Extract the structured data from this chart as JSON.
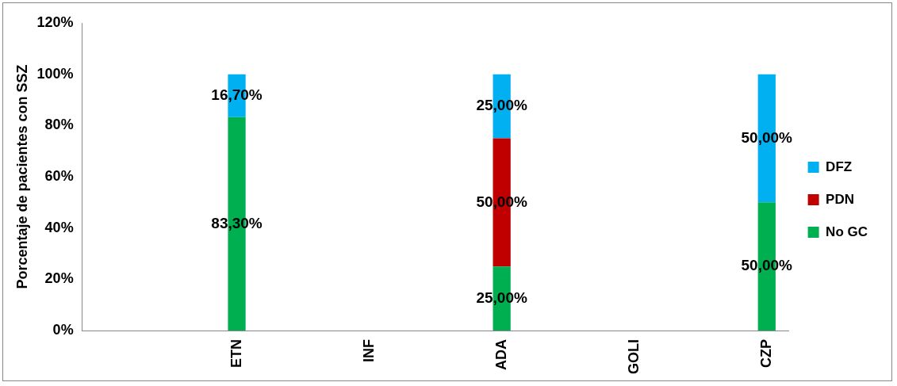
{
  "chart_data": {
    "type": "bar",
    "stacked": true,
    "ylabel": "Porcentaje de pacientes con SSZ",
    "categories": [
      null,
      null,
      null,
      "ETN",
      null,
      null,
      "INF",
      null,
      null,
      "ADA",
      null,
      null,
      "GOLI",
      null,
      null,
      "CZP"
    ],
    "series": [
      {
        "name": "No GC",
        "color": "#00b050",
        "values": [
          null,
          null,
          null,
          83.3,
          null,
          null,
          null,
          null,
          null,
          25,
          null,
          null,
          null,
          null,
          null,
          50
        ],
        "value_labels": [
          null,
          null,
          null,
          "83,30%",
          null,
          null,
          null,
          null,
          null,
          "25,00%",
          null,
          null,
          null,
          null,
          null,
          "50,00%"
        ]
      },
      {
        "name": "PDN",
        "color": "#c00000",
        "values": [
          null,
          null,
          null,
          null,
          null,
          null,
          null,
          null,
          null,
          50,
          null,
          null,
          null,
          null,
          null,
          null
        ],
        "value_labels": [
          null,
          null,
          null,
          null,
          null,
          null,
          null,
          null,
          null,
          "50,00%",
          null,
          null,
          null,
          null,
          null,
          null
        ]
      },
      {
        "name": "DFZ",
        "color": "#00b0f0",
        "values": [
          null,
          null,
          null,
          16.7,
          null,
          null,
          null,
          null,
          null,
          25,
          null,
          null,
          null,
          null,
          null,
          50
        ],
        "value_labels": [
          null,
          null,
          null,
          "16,70%",
          null,
          null,
          null,
          null,
          null,
          "25,00%",
          null,
          null,
          null,
          null,
          null,
          "50,00%"
        ]
      }
    ],
    "ylim": [
      0,
      120
    ],
    "yticks": [
      {
        "value": 0,
        "label": "0%"
      },
      {
        "value": 20,
        "label": "20%"
      },
      {
        "value": 40,
        "label": "40%"
      },
      {
        "value": 60,
        "label": "60%"
      },
      {
        "value": 80,
        "label": "80%"
      },
      {
        "value": 100,
        "label": "100%"
      },
      {
        "value": 120,
        "label": "120%"
      }
    ],
    "grid": false,
    "legend": "right"
  }
}
